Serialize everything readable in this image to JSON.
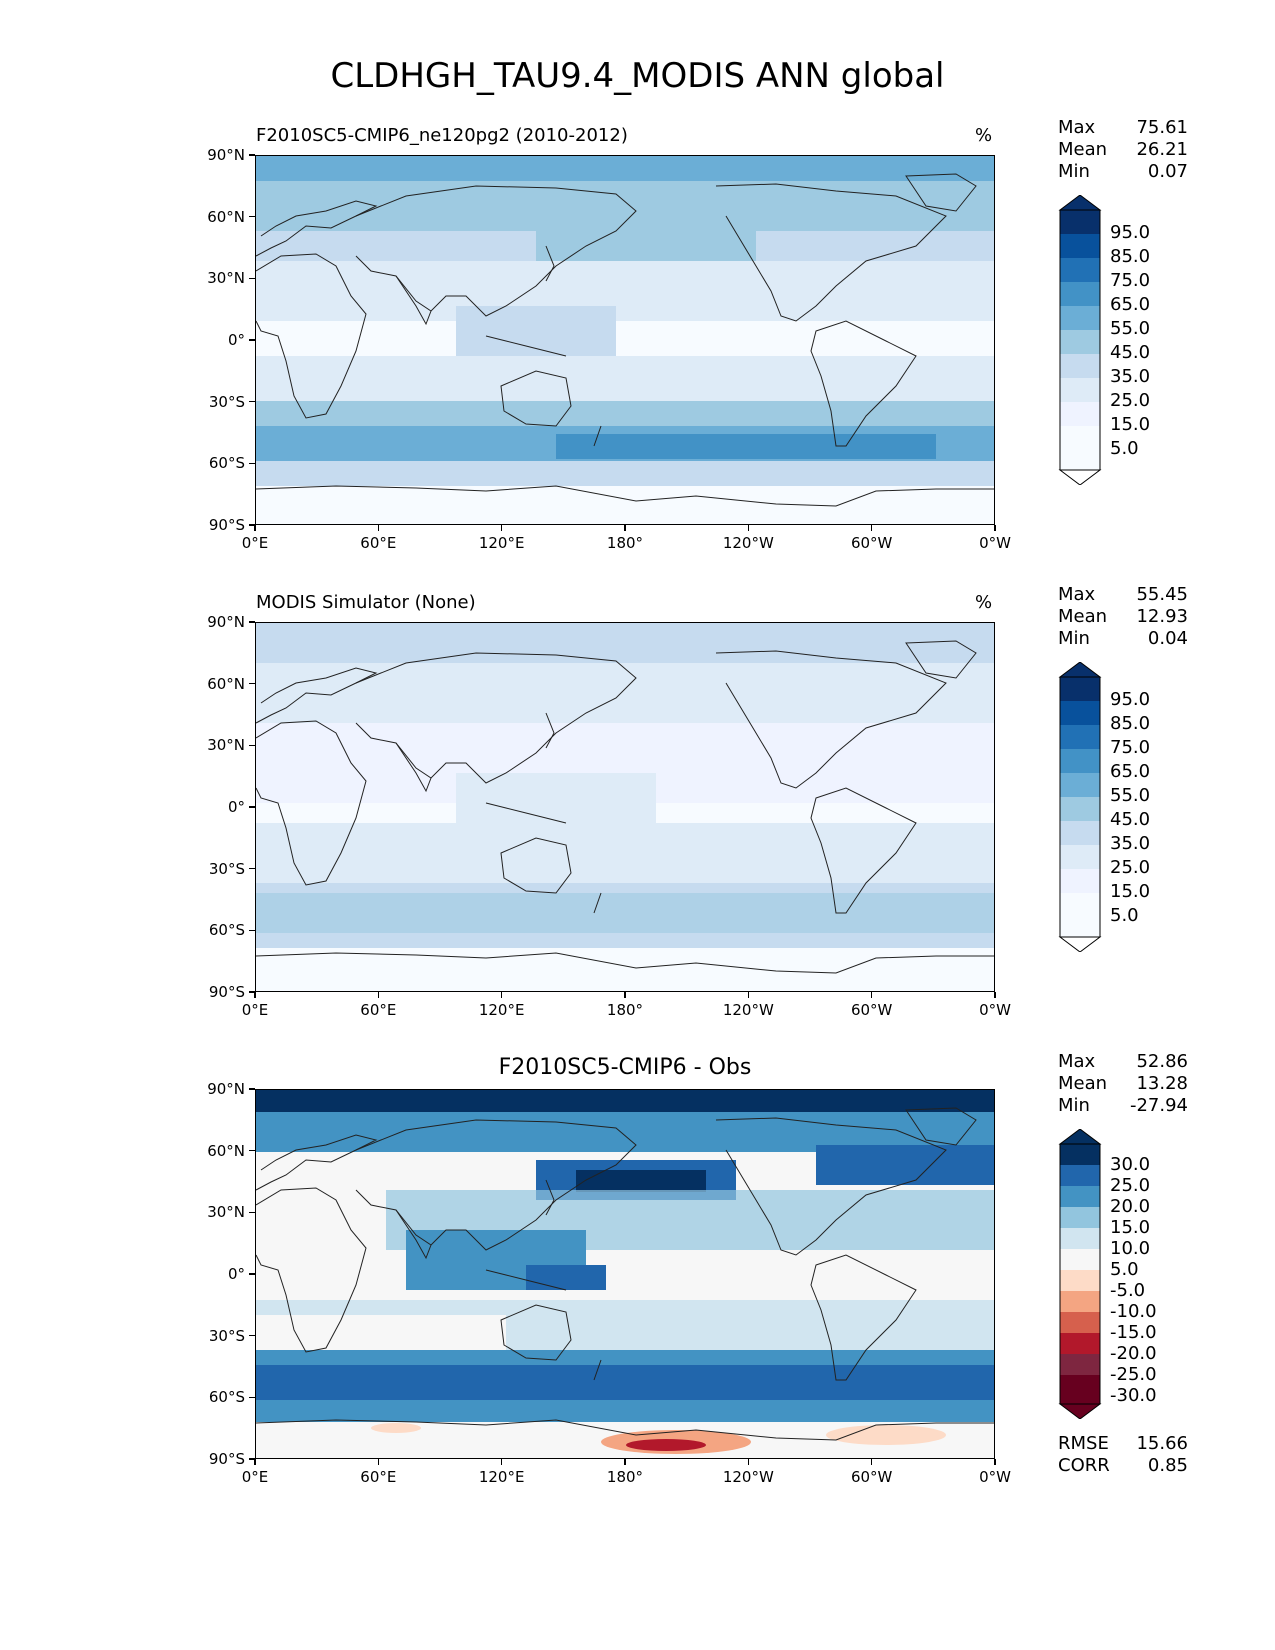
{
  "title": "CLDHGH_TAU9.4_MODIS ANN global",
  "lat_labels": [
    "90°N",
    "60°N",
    "30°N",
    "0°",
    "30°S",
    "60°S",
    "90°S"
  ],
  "lon_labels": [
    "0°E",
    "60°E",
    "120°E",
    "180°",
    "120°W",
    "60°W",
    "0°W"
  ],
  "colors": {
    "blues": [
      "#f7fbff",
      "#deebf7",
      "#c6dbef",
      "#9ecae1",
      "#6baed6",
      "#4292c6",
      "#2171b5",
      "#08519c",
      "#08306b"
    ],
    "diverging": [
      "#67001f",
      "#b2182b",
      "#d6604d",
      "#f4a582",
      "#fddbc7",
      "#f7f7f7",
      "#d1e5f0",
      "#92c5de",
      "#4393c3",
      "#2166ac",
      "#053061"
    ]
  },
  "panels": [
    {
      "title": "F2010SC5-CMIP6_ne120pg2 (2010-2012)",
      "units": "%",
      "stats": {
        "max_label": "Max",
        "max": "75.61",
        "mean_label": "Mean",
        "mean": "26.21",
        "min_label": "Min",
        "min": "0.07"
      },
      "colorbar_labels": [
        "95.0",
        "85.0",
        "75.0",
        "65.0",
        "55.0",
        "45.0",
        "35.0",
        "25.0",
        "15.0",
        "5.0"
      ]
    },
    {
      "title": "MODIS Simulator (None)",
      "units": "%",
      "stats": {
        "max_label": "Max",
        "max": "55.45",
        "mean_label": "Mean",
        "mean": "12.93",
        "min_label": "Min",
        "min": "0.04"
      },
      "colorbar_labels": [
        "95.0",
        "85.0",
        "75.0",
        "65.0",
        "55.0",
        "45.0",
        "35.0",
        "25.0",
        "15.0",
        "5.0"
      ]
    },
    {
      "title": "F2010SC5-CMIP6 - Obs",
      "units": "",
      "stats": {
        "max_label": "Max",
        "max": "52.86",
        "mean_label": "Mean",
        "mean": "13.28",
        "min_label": "Min",
        "min": "-27.94"
      },
      "colorbar_labels": [
        "30.0",
        "25.0",
        "20.0",
        "15.0",
        "10.0",
        "5.0",
        "-5.0",
        "-10.0",
        "-15.0",
        "-20.0",
        "-25.0",
        "-30.0"
      ],
      "rmse_label": "RMSE",
      "rmse": "15.66",
      "corr_label": "CORR",
      "corr": "0.85"
    }
  ]
}
